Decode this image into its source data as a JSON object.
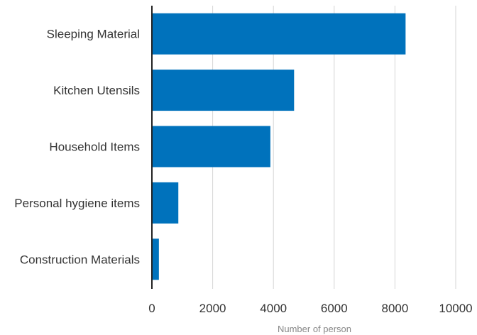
{
  "chart_data": {
    "type": "bar",
    "orientation": "horizontal",
    "categories": [
      "Sleeping Material",
      "Kitchen Utensils",
      "Household Items",
      "Personal hygiene items",
      "Construction Materials"
    ],
    "values": [
      8350,
      4680,
      3900,
      870,
      230
    ],
    "xlabel": "Number of person",
    "xlim": [
      0,
      10000
    ],
    "xticks": [
      0,
      2000,
      4000,
      6000,
      8000,
      10000
    ],
    "grid": true,
    "bar_color": "#0072bc"
  }
}
